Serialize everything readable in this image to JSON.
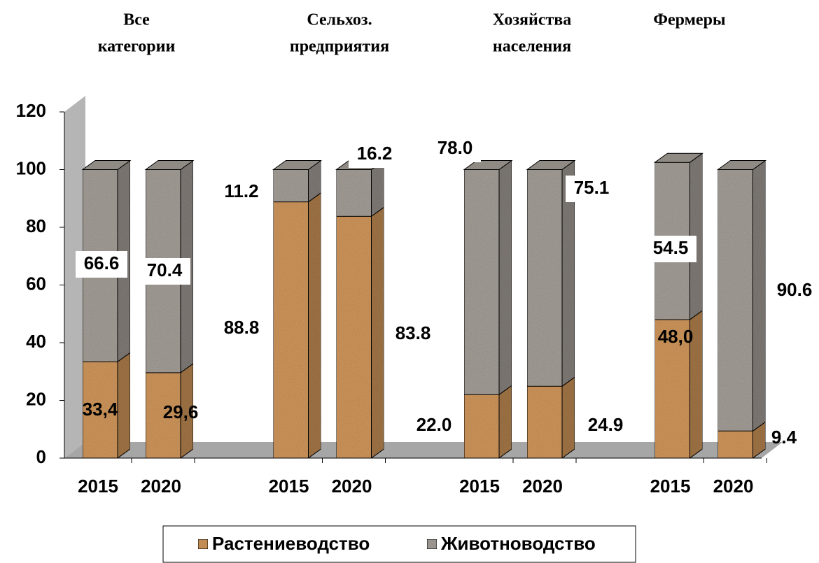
{
  "chart_data": {
    "type": "bar",
    "stacked": true,
    "group_labels": [
      [
        "Все",
        "категории"
      ],
      [
        "Сельхоз.",
        "предприятия"
      ],
      [
        "Хозяйства",
        "населения"
      ],
      [
        "Фермеры"
      ]
    ],
    "categories": [
      "2015",
      "2020",
      "2015",
      "2020",
      "2015",
      "2020",
      "2015",
      "2020"
    ],
    "series": [
      {
        "name": "Растениеводство",
        "color": "#d49a5e",
        "values": [
          33.4,
          29.6,
          88.8,
          83.8,
          22.0,
          24.9,
          48.0,
          9.4
        ],
        "value_labels": [
          "33,4",
          "29,6",
          "88.8",
          "83.8",
          "22.0",
          "24.9",
          "48,0",
          "9.4"
        ]
      },
      {
        "name": "Животноводство",
        "color": "#a8a29b",
        "values": [
          66.6,
          70.4,
          11.2,
          16.2,
          78.0,
          75.1,
          54.5,
          90.6
        ],
        "value_labels": [
          "66.6",
          "70.4",
          "11.2",
          "16.2",
          "78.0",
          "75.1",
          "54.5",
          "90.6"
        ]
      }
    ],
    "ylim": [
      0,
      120
    ],
    "yticks": [
      0,
      20,
      40,
      60,
      80,
      100,
      120
    ],
    "legend": "bottom"
  }
}
